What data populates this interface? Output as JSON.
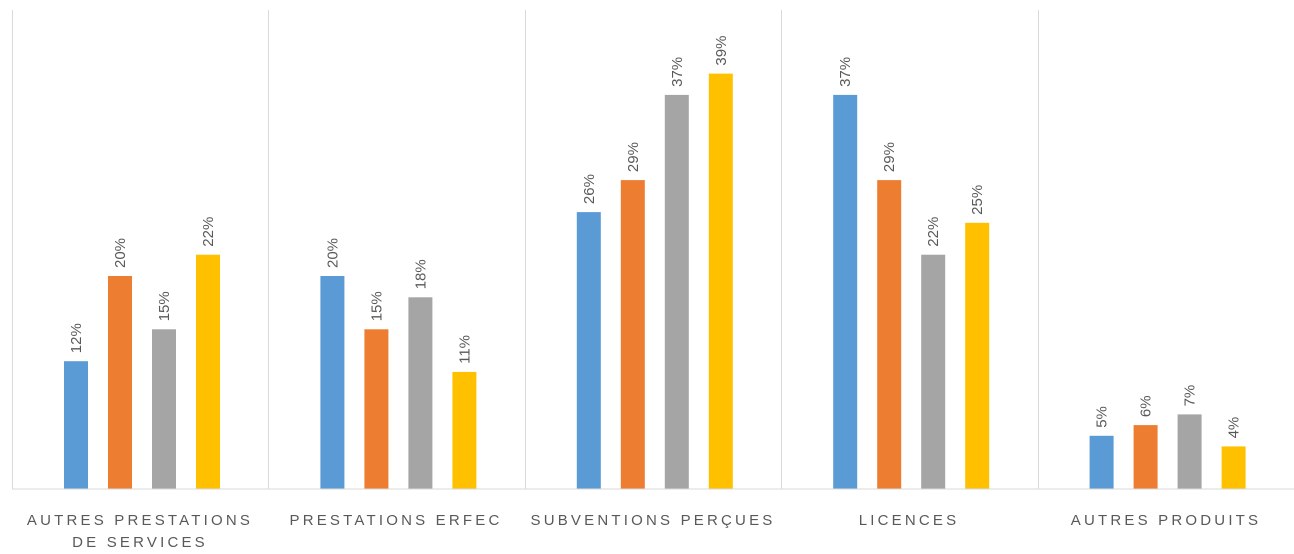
{
  "chart_data": {
    "type": "bar",
    "categories": [
      "AUTRES PRESTATIONS DE SERVICES",
      "PRESTATIONS ERFEC",
      "SUBVENTIONS PERÇUES",
      "LICENCES",
      "AUTRES PRODUITS"
    ],
    "series": [
      {
        "color": "#5b9bd5",
        "values": [
          12,
          20,
          26,
          37,
          5
        ],
        "labels": [
          "12%",
          "20%",
          "26%",
          "37%",
          "5%"
        ]
      },
      {
        "color": "#ed7d31",
        "values": [
          20,
          15,
          29,
          29,
          6
        ],
        "labels": [
          "20%",
          "15%",
          "29%",
          "29%",
          "6%"
        ]
      },
      {
        "color": "#a5a5a5",
        "values": [
          15,
          18,
          37,
          22,
          7
        ],
        "labels": [
          "15%",
          "18%",
          "37%",
          "22%",
          "7%"
        ]
      },
      {
        "color": "#ffc000",
        "values": [
          22,
          11,
          39,
          25,
          4
        ],
        "labels": [
          "22%",
          "11%",
          "39%",
          "25%",
          "4%"
        ]
      }
    ],
    "value_unit": "%",
    "ylim": [
      0,
      42
    ],
    "grid": false,
    "legend": "none",
    "title": "",
    "xlabel": "",
    "ylabel": ""
  }
}
